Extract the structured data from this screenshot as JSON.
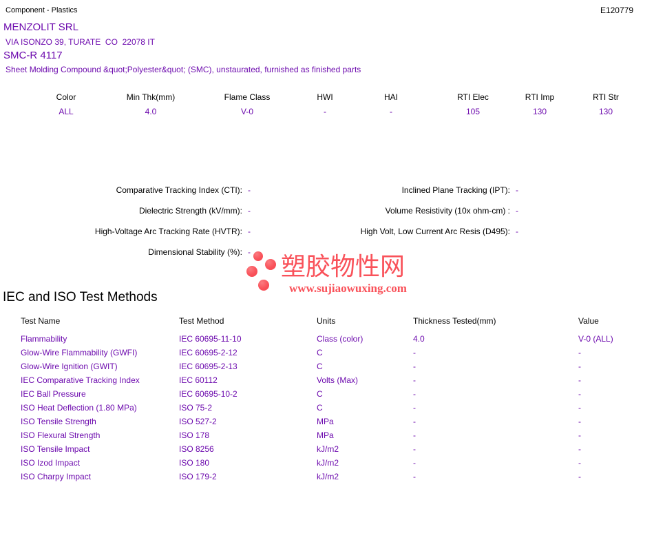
{
  "header": {
    "page_type": "Component - Plastics",
    "file_number": "E120779"
  },
  "company": {
    "name": "MENZOLIT SRL",
    "address": "VIA ISONZO 39, TURATE  CO  22078 IT"
  },
  "product": {
    "name": "SMC-R 4117",
    "description": "Sheet Molding Compound &quot;Polyester&quot; (SMC), unstaurated, furnished as finished parts"
  },
  "ratings": {
    "columns": [
      {
        "label": "Color",
        "value": "ALL"
      },
      {
        "label": "Min Thk(mm)",
        "value": "4.0"
      },
      {
        "label": "Flame Class",
        "value": "V-0"
      },
      {
        "label": "HWI",
        "value": "-"
      },
      {
        "label": "HAI",
        "value": "-"
      },
      {
        "label": "RTI Elec",
        "value": "105"
      },
      {
        "label": "RTI Imp",
        "value": "130"
      },
      {
        "label": "RTI Str",
        "value": "130"
      }
    ]
  },
  "electrical": {
    "left": [
      {
        "label": "Comparative Tracking Index (CTI):",
        "value": "-"
      },
      {
        "label": "Dielectric Strength (kV/mm):",
        "value": "-"
      },
      {
        "label": "High-Voltage Arc Tracking Rate (HVTR):",
        "value": "-"
      },
      {
        "label": "Dimensional Stability (%):",
        "value": "-"
      }
    ],
    "right": [
      {
        "label": "Inclined Plane Tracking (IPT):",
        "value": "-"
      },
      {
        "label": "Volume Resistivity (10x ohm-cm) :",
        "value": "-"
      },
      {
        "label": "High Volt, Low Current Arc Resis (D495):",
        "value": "-"
      }
    ]
  },
  "logo": {
    "site_name": "塑胶物性网",
    "site_url": "www.sujiaowuxing.com"
  },
  "section": {
    "title": "IEC and ISO Test Methods"
  },
  "methods": {
    "columns": [
      "Test Name",
      "Test Method",
      "Units",
      "Thickness Tested(mm)",
      "Value"
    ],
    "rows": [
      [
        "Flammability",
        "IEC 60695-11-10",
        "Class (color)",
        "4.0",
        "V-0 (ALL)"
      ],
      [
        "Glow-Wire Flammability (GWFI)",
        "IEC 60695-2-12",
        "C",
        "-",
        "-"
      ],
      [
        "Glow-Wire Ignition (GWIT)",
        "IEC 60695-2-13",
        "C",
        "-",
        "-"
      ],
      [
        "IEC Comparative Tracking Index",
        "IEC 60112",
        "Volts (Max)",
        "-",
        "-"
      ],
      [
        "IEC Ball Pressure",
        "IEC 60695-10-2",
        "C",
        "-",
        "-"
      ],
      [
        "ISO Heat Deflection (1.80 MPa)",
        "ISO 75-2",
        "C",
        "-",
        "-"
      ],
      [
        "ISO Tensile Strength",
        "ISO 527-2",
        "MPa",
        "-",
        "-"
      ],
      [
        "ISO Flexural Strength",
        "ISO 178",
        "MPa",
        "-",
        "-"
      ],
      [
        "ISO Tensile Impact",
        "ISO 8256",
        "kJ/m2",
        "-",
        "-"
      ],
      [
        "ISO Izod Impact",
        "ISO 180",
        "kJ/m2",
        "-",
        "-"
      ],
      [
        "ISO Charpy Impact",
        "ISO 179-2",
        "kJ/m2",
        "-",
        "-"
      ]
    ]
  },
  "colors": {
    "purple": "#6D0BAE",
    "red": "#F9525A",
    "black": "#000000"
  }
}
